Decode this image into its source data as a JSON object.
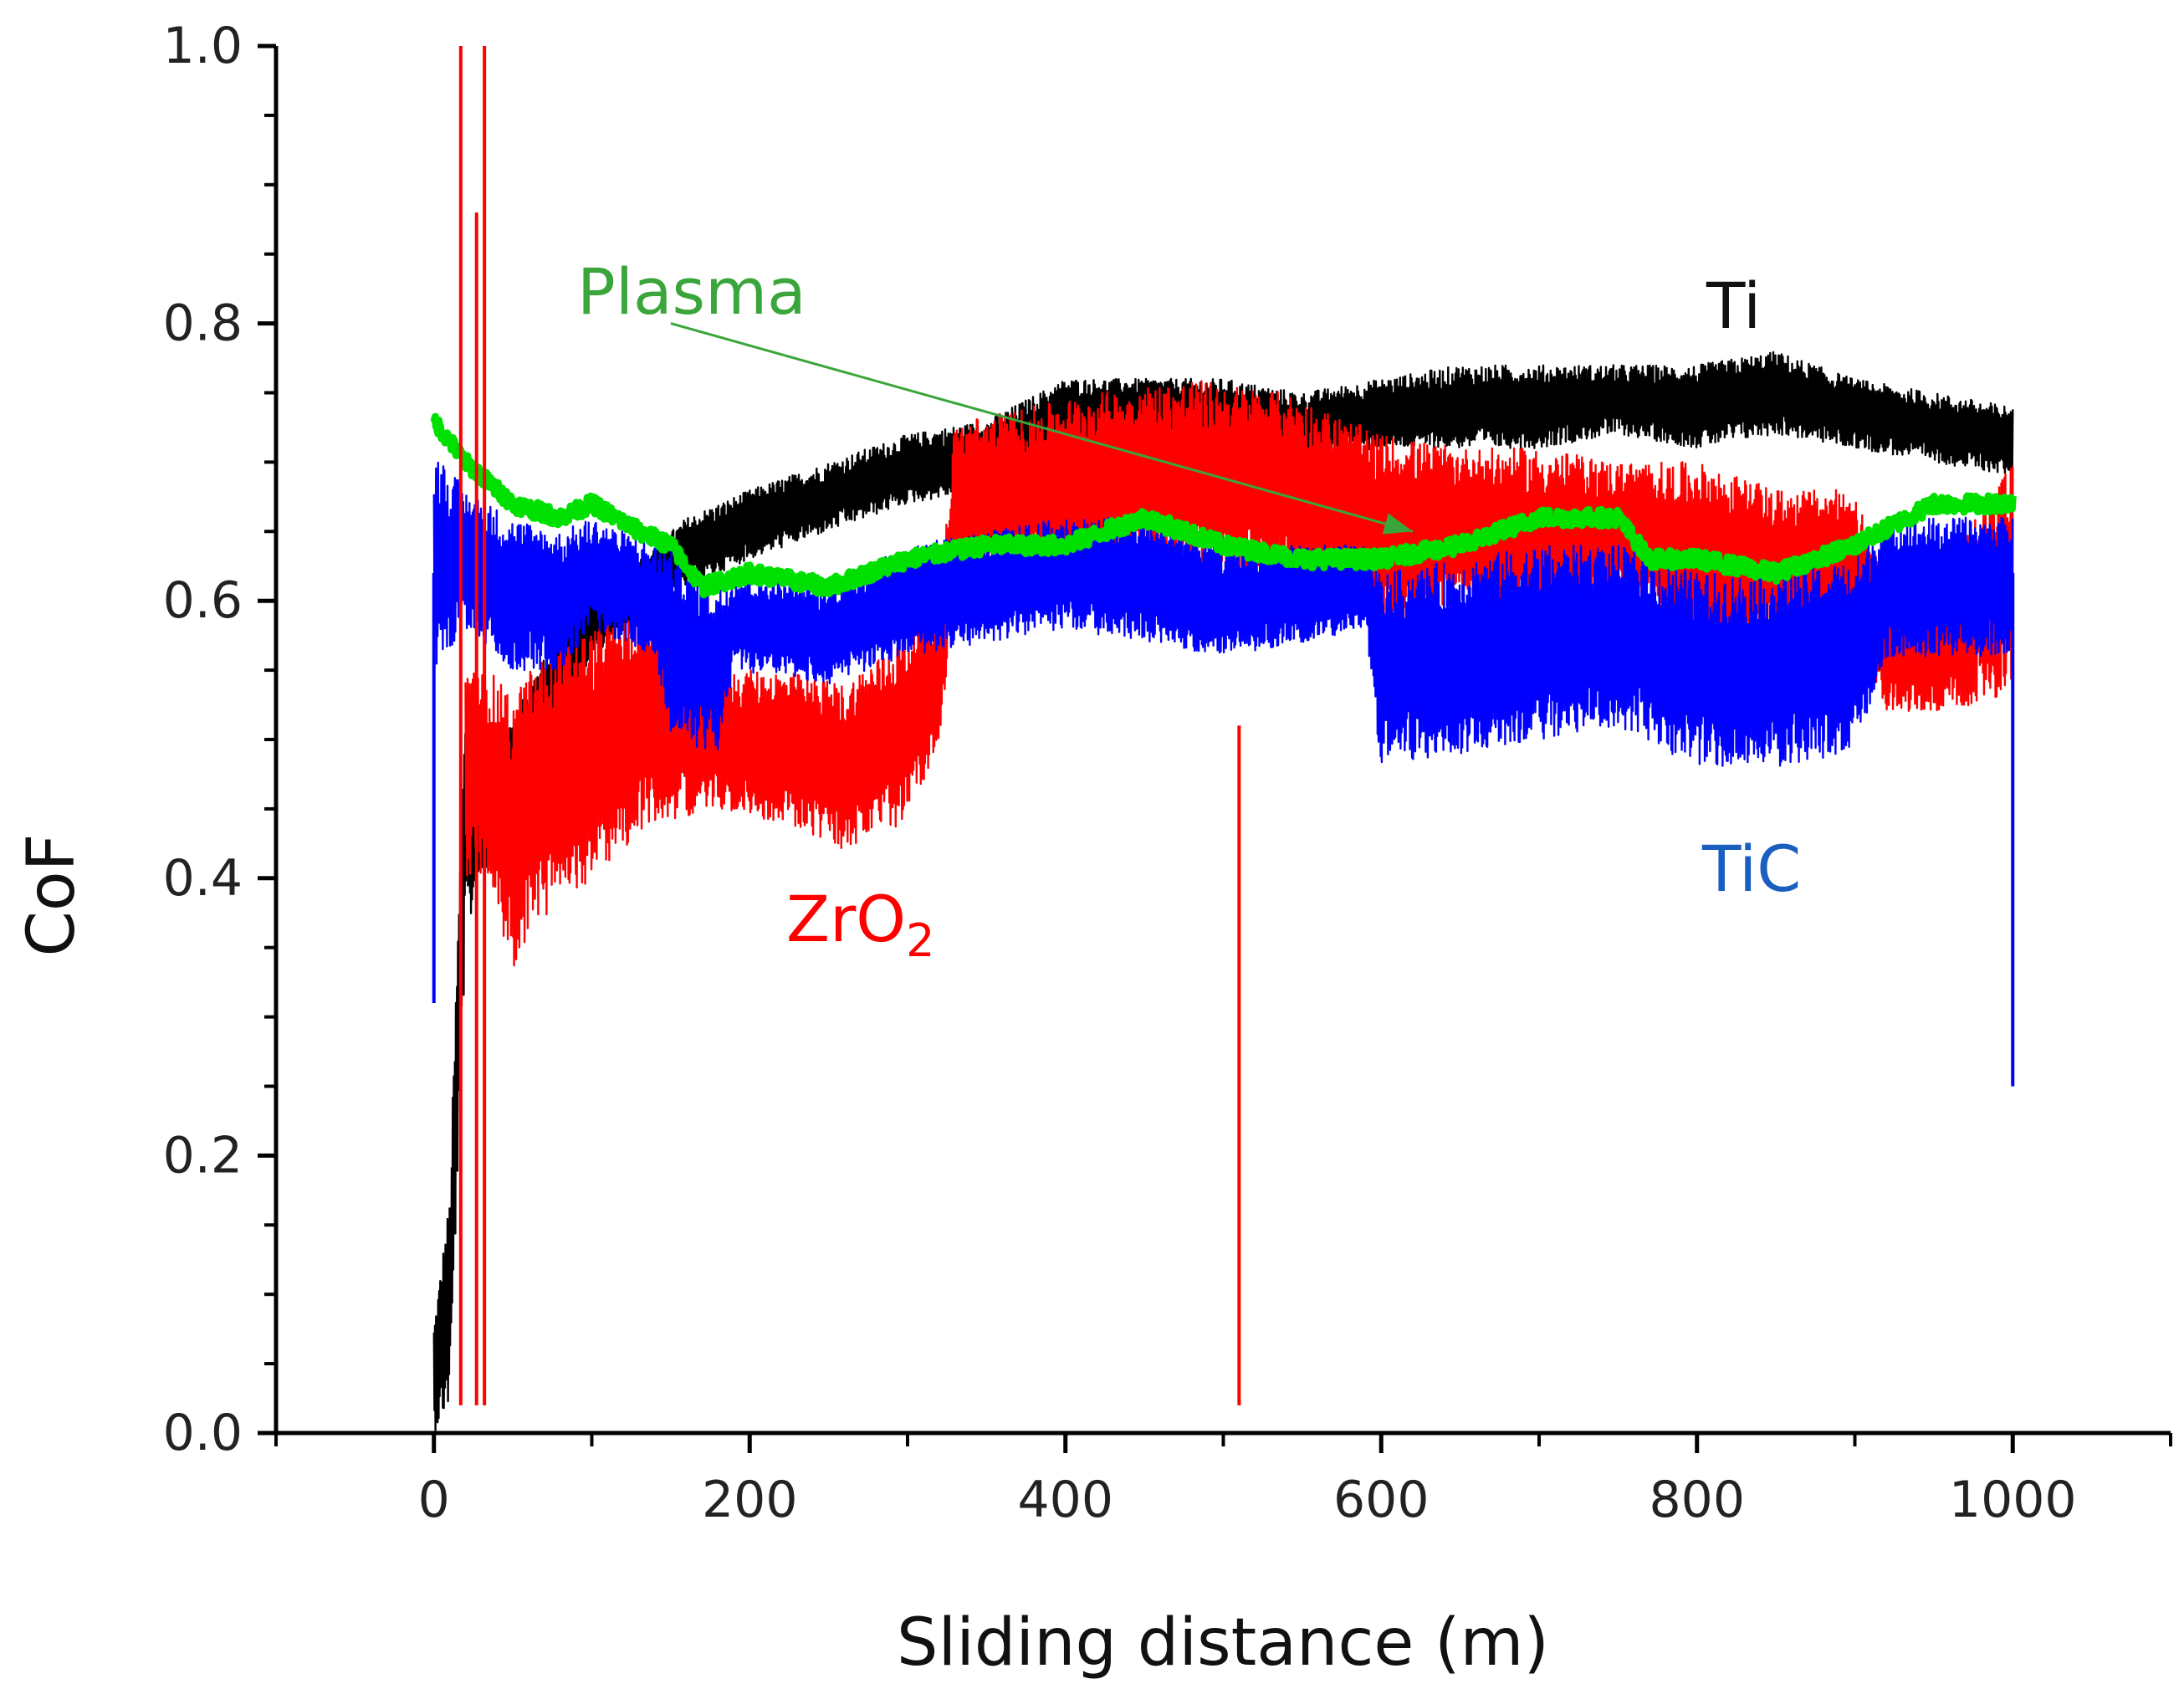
{
  "chart_data": {
    "type": "line",
    "title": "",
    "xlabel": "Sliding distance (m)",
    "ylabel": "CoF",
    "xlim": [
      -100,
      1100
    ],
    "ylim": [
      0.0,
      1.0
    ],
    "xticks": [
      "0",
      "200",
      "400",
      "600",
      "800",
      "1000"
    ],
    "yticks": [
      "0.0",
      "0.2",
      "0.4",
      "0.6",
      "0.8",
      "1.0"
    ],
    "colors": {
      "Ti": "#000000",
      "ZrO2": "#ff0000",
      "TiC": "#0000ff",
      "Plasma": "#00e000",
      "Plasma_label": "#3aa53a",
      "TiC_label": "#1a5fc0",
      "arrow": "#3aa53a"
    },
    "labels": {
      "Ti": "Ti",
      "ZrO2_main": "ZrO",
      "ZrO2_sub": "2",
      "TiC": "TiC",
      "Plasma": "Plasma"
    },
    "series": [
      {
        "name": "Ti",
        "x": [
          0,
          10,
          20,
          30,
          45,
          60,
          80,
          100,
          130,
          160,
          200,
          250,
          300,
          350,
          400,
          450,
          500,
          550,
          600,
          650,
          700,
          750,
          800,
          850,
          900,
          950,
          1000
        ],
        "lo": [
          0.0,
          0.02,
          0.35,
          0.4,
          0.42,
          0.46,
          0.52,
          0.56,
          0.58,
          0.61,
          0.63,
          0.65,
          0.67,
          0.68,
          0.71,
          0.72,
          0.71,
          0.7,
          0.71,
          0.71,
          0.71,
          0.72,
          0.71,
          0.72,
          0.71,
          0.7,
          0.69
        ],
        "hi": [
          0.08,
          0.17,
          0.55,
          0.52,
          0.5,
          0.54,
          0.58,
          0.61,
          0.63,
          0.66,
          0.68,
          0.7,
          0.72,
          0.73,
          0.76,
          0.76,
          0.76,
          0.75,
          0.76,
          0.77,
          0.77,
          0.77,
          0.77,
          0.78,
          0.76,
          0.75,
          0.74
        ]
      },
      {
        "name": "ZrO2",
        "x": [
          20,
          35,
          50,
          60,
          80,
          100,
          140,
          180,
          220,
          260,
          300,
          320,
          330,
          380,
          420,
          480,
          540,
          600,
          650,
          700,
          750,
          800,
          850,
          900,
          920,
          950,
          1000
        ],
        "lo": [
          0.4,
          0.4,
          0.33,
          0.36,
          0.38,
          0.4,
          0.44,
          0.45,
          0.44,
          0.42,
          0.44,
          0.5,
          0.6,
          0.62,
          0.63,
          0.62,
          0.62,
          0.58,
          0.6,
          0.58,
          0.6,
          0.57,
          0.57,
          0.58,
          0.52,
          0.52,
          0.53
        ],
        "hi": [
          0.55,
          0.55,
          0.53,
          0.55,
          0.57,
          0.58,
          0.6,
          0.55,
          0.55,
          0.54,
          0.58,
          0.6,
          0.73,
          0.74,
          0.75,
          0.76,
          0.75,
          0.72,
          0.71,
          0.71,
          0.7,
          0.7,
          0.68,
          0.68,
          0.61,
          0.62,
          0.7
        ]
      },
      {
        "name": "TiC",
        "x": [
          0,
          20,
          50,
          80,
          100,
          140,
          150,
          180,
          190,
          250,
          300,
          350,
          400,
          450,
          500,
          550,
          590,
          600,
          650,
          700,
          750,
          800,
          850,
          900,
          920,
          960,
          1000
        ],
        "lo": [
          0.55,
          0.58,
          0.55,
          0.55,
          0.58,
          0.56,
          0.5,
          0.49,
          0.55,
          0.54,
          0.56,
          0.57,
          0.58,
          0.57,
          0.56,
          0.57,
          0.58,
          0.48,
          0.49,
          0.5,
          0.51,
          0.48,
          0.48,
          0.49,
          0.56,
          0.56,
          0.56
        ],
        "hi": [
          0.71,
          0.68,
          0.66,
          0.65,
          0.66,
          0.64,
          0.64,
          0.61,
          0.62,
          0.61,
          0.64,
          0.65,
          0.66,
          0.66,
          0.64,
          0.64,
          0.64,
          0.62,
          0.63,
          0.64,
          0.64,
          0.62,
          0.62,
          0.63,
          0.66,
          0.66,
          0.66
        ]
      },
      {
        "name": "Plasma",
        "x": [
          0,
          20,
          50,
          80,
          100,
          130,
          150,
          170,
          200,
          250,
          300,
          350,
          400,
          450,
          500,
          550,
          600,
          650,
          700,
          750,
          770,
          800,
          850,
          900,
          950,
          1000
        ],
        "y": [
          0.73,
          0.7,
          0.67,
          0.66,
          0.67,
          0.65,
          0.64,
          0.61,
          0.62,
          0.61,
          0.63,
          0.64,
          0.64,
          0.66,
          0.64,
          0.63,
          0.63,
          0.64,
          0.66,
          0.66,
          0.63,
          0.63,
          0.62,
          0.64,
          0.67,
          0.67
        ]
      }
    ],
    "spikes": [
      {
        "name": "ZrO2 startup spike",
        "x": 17,
        "y": 1.0
      },
      {
        "name": "ZrO2 startup spike",
        "x": 32,
        "y": 1.0
      },
      {
        "name": "ZrO2 startup spike",
        "x": 27,
        "y": 0.88
      },
      {
        "name": "TiC end drop",
        "x": 1000,
        "y": 0.25
      },
      {
        "name": "TiC start drop",
        "x": 0,
        "y": 0.31
      },
      {
        "name": "ZrO2 dip",
        "x": 510,
        "y": 0.51
      }
    ],
    "annotations": [
      {
        "text": "Plasma",
        "arrow_from": [
          150,
          0.8
        ],
        "arrow_to": [
          620,
          0.65
        ]
      }
    ]
  }
}
